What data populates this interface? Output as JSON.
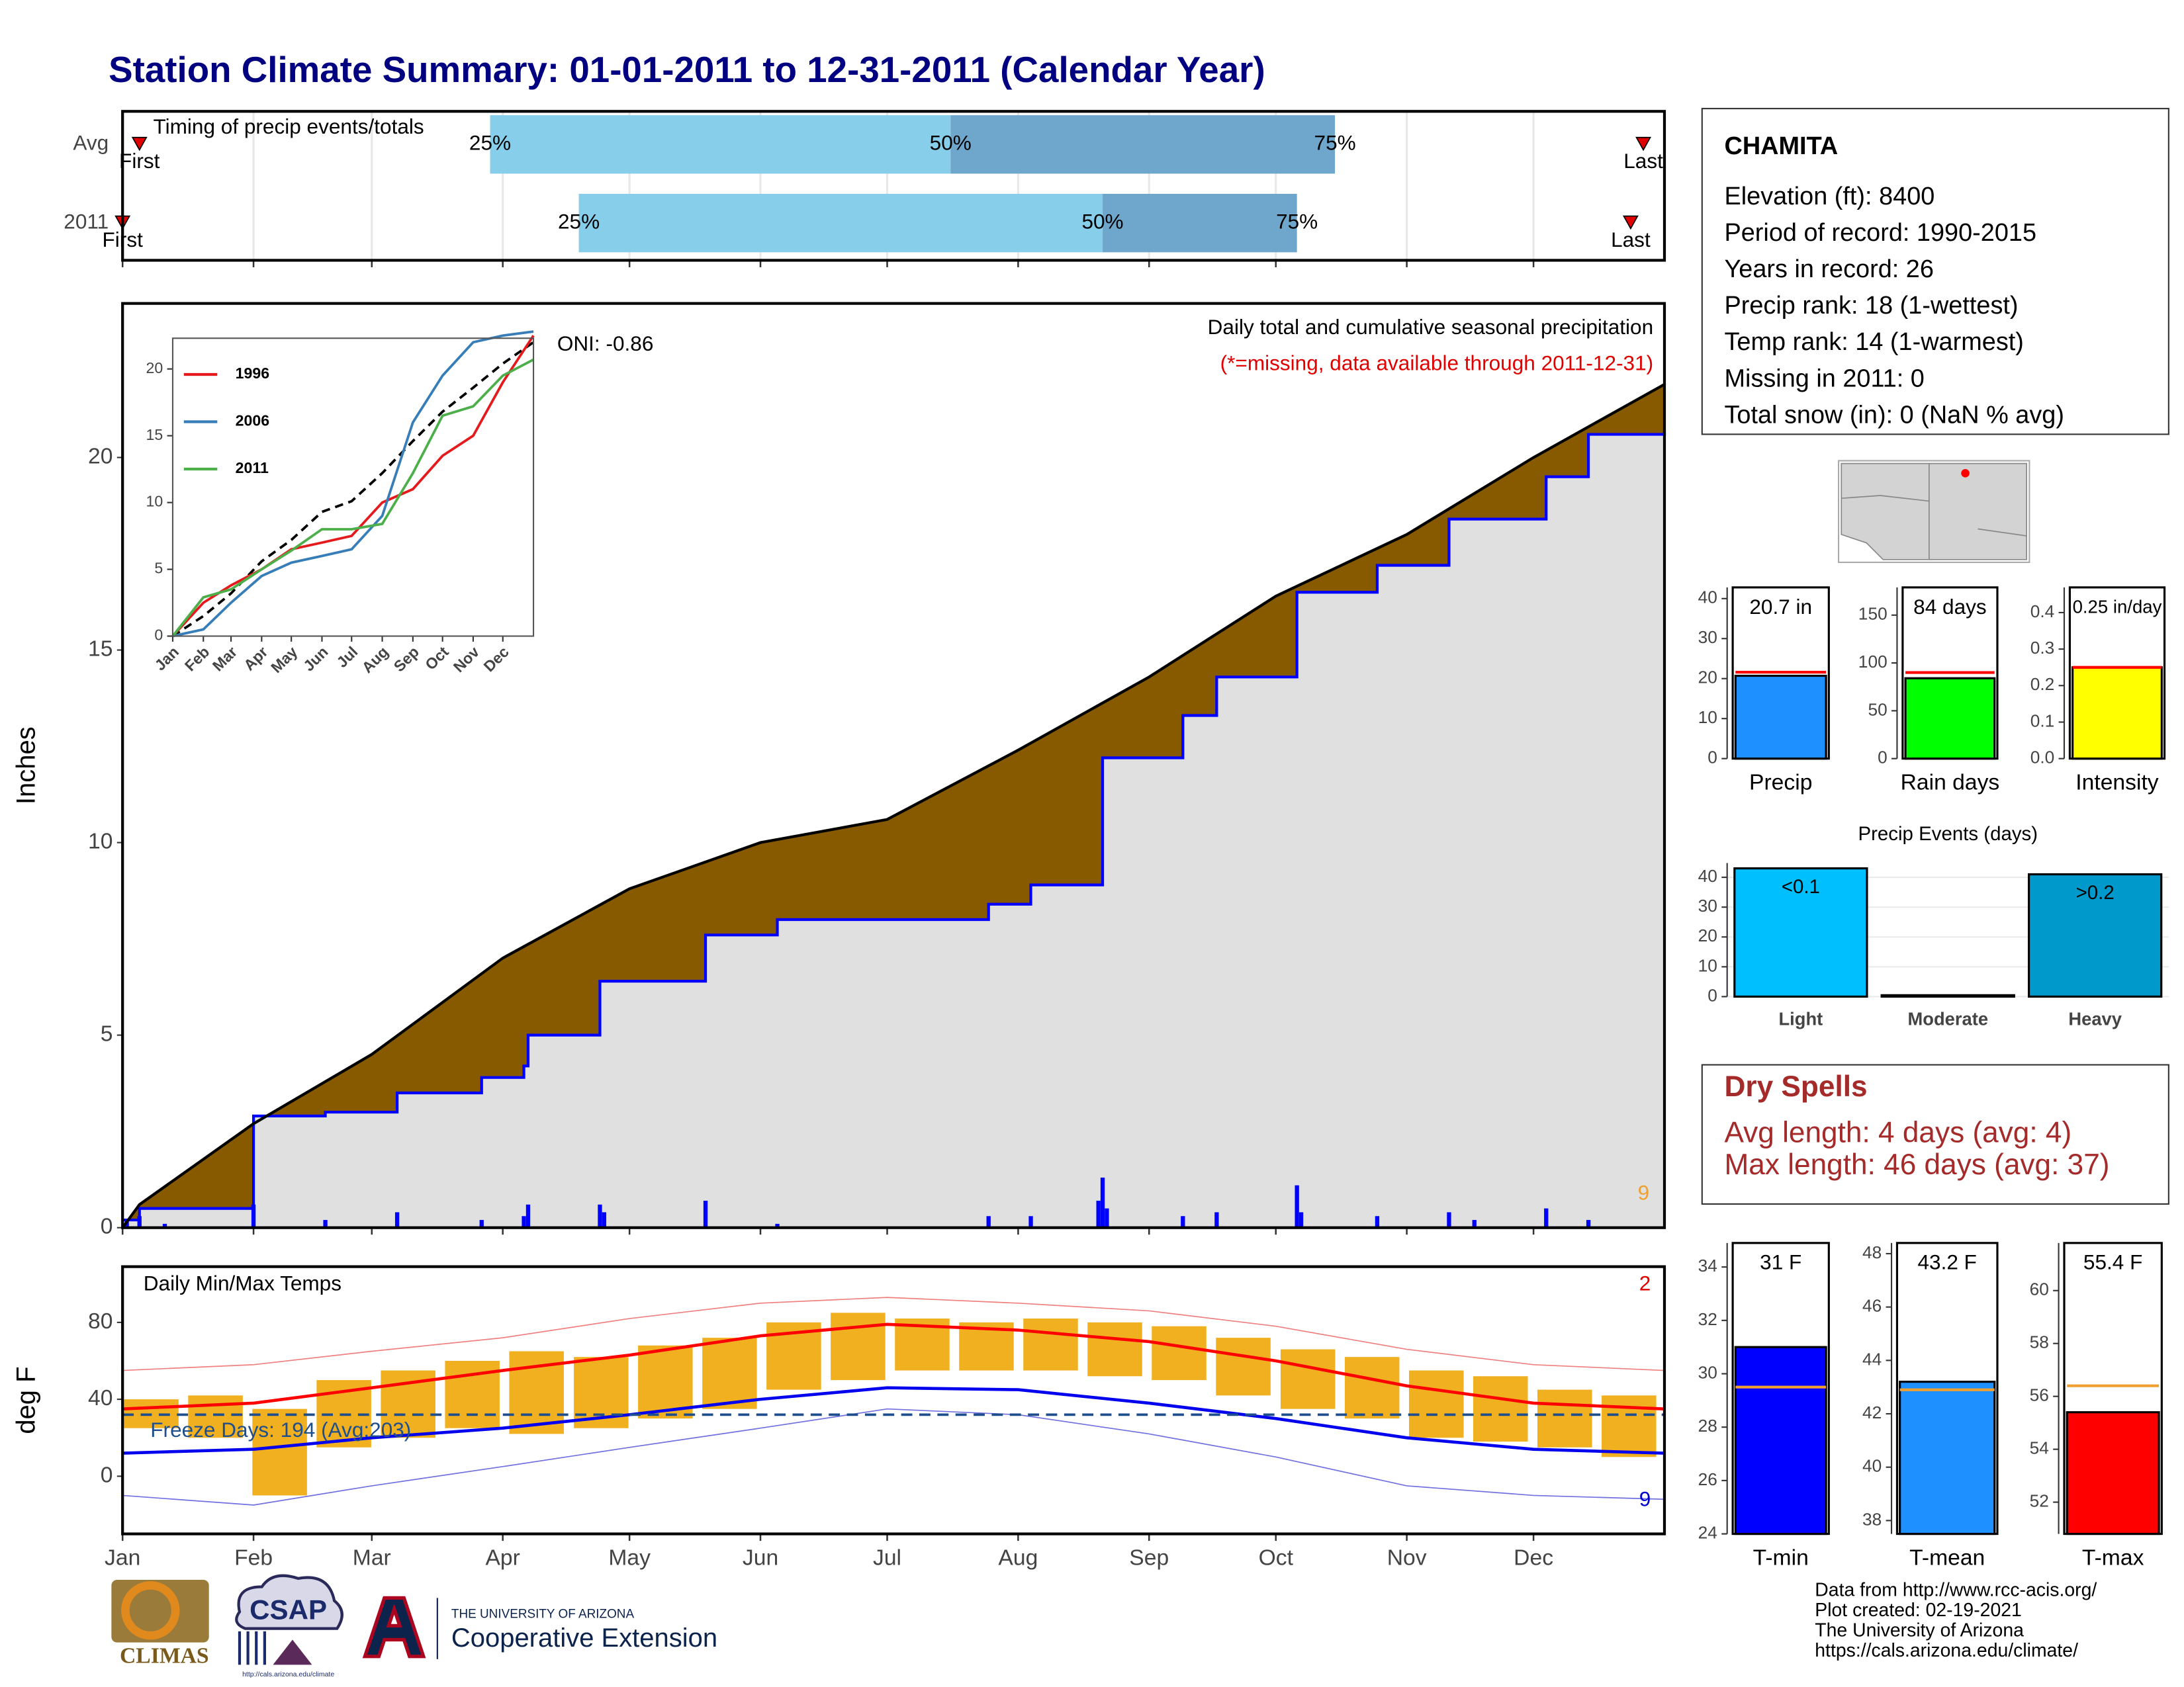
{
  "title": "Station Climate Summary: 01-01-2011 to 12-31-2011 (Calendar Year)",
  "chart_data": [
    {
      "type": "timing",
      "title": "Timing of precip events/totals",
      "categories": [
        "Avg",
        "2011"
      ],
      "xlim": [
        0,
        365
      ],
      "xticks": [
        0,
        31,
        59,
        90,
        120,
        151,
        181,
        212,
        243,
        273,
        304,
        334
      ],
      "grid": true,
      "marker_color": "#e00000",
      "series": [
        {
          "name": "First",
          "values": [
            4,
            0
          ]
        },
        {
          "name": "25%",
          "color": "#87ceeb",
          "values": [
            87,
            108
          ]
        },
        {
          "name": "50%",
          "color": "#6fa6cc",
          "values": [
            196,
            232
          ]
        },
        {
          "name": "75%",
          "values": [
            287,
            278
          ]
        },
        {
          "name": "Last",
          "values": [
            360,
            357
          ]
        }
      ]
    },
    {
      "type": "cumulative",
      "title": "Daily total and cumulative seasonal precipitation",
      "subtitle": "(*=missing, data available through 2011-12-31)",
      "oni": "ONI: -0.86",
      "note_count": "9",
      "ylabel": "Inches",
      "xlim": [
        0,
        365
      ],
      "xticks": [
        0,
        31,
        59,
        90,
        120,
        151,
        181,
        212,
        243,
        273,
        304,
        334
      ],
      "ylim": [
        0,
        24
      ],
      "yticks": [
        0,
        5,
        10,
        15,
        20
      ],
      "average": {
        "color": "#000000",
        "fill": "#875a00",
        "x": [
          0,
          4,
          31,
          59,
          90,
          120,
          151,
          181,
          212,
          243,
          273,
          304,
          334,
          365
        ],
        "values": [
          0,
          0.6,
          2.7,
          4.5,
          7.0,
          8.8,
          10.0,
          10.6,
          12.4,
          14.3,
          16.4,
          18.0,
          20.0,
          21.9
        ]
      },
      "observed": {
        "color": "#0000ff",
        "fill": "#e0e0e0",
        "x": [
          0,
          4,
          31,
          48,
          65,
          85,
          95,
          96,
          113,
          138,
          155,
          205,
          215,
          232,
          251,
          259,
          278,
          297,
          314,
          337,
          347,
          365
        ],
        "values": [
          0.2,
          0.5,
          2.9,
          3.0,
          3.5,
          3.9,
          4.2,
          5.0,
          6.4,
          7.6,
          8.0,
          8.4,
          8.9,
          12.2,
          13.3,
          14.3,
          16.5,
          17.2,
          18.4,
          19.5,
          20.6,
          20.7
        ]
      },
      "daily": {
        "color": "#0000ff",
        "x": [
          1,
          4,
          10,
          31,
          48,
          65,
          85,
          95,
          96,
          113,
          114,
          138,
          155,
          205,
          215,
          231,
          232,
          233,
          251,
          259,
          278,
          279,
          297,
          314,
          320,
          337,
          347
        ],
        "values": [
          0.2,
          0.3,
          0.1,
          0.6,
          0.2,
          0.4,
          0.2,
          0.3,
          0.6,
          0.6,
          0.4,
          0.7,
          0.1,
          0.3,
          0.3,
          0.7,
          1.3,
          0.5,
          0.3,
          0.4,
          1.1,
          0.4,
          0.3,
          0.4,
          0.2,
          0.5,
          0.2
        ]
      }
    },
    {
      "type": "inset",
      "xlim": [
        0,
        365
      ],
      "xticks": [
        {
          "value": 0,
          "label": "Jan"
        },
        {
          "value": 31,
          "label": "Feb"
        },
        {
          "value": 59,
          "label": "Mar"
        },
        {
          "value": 90,
          "label": "Apr"
        },
        {
          "value": 120,
          "label": "May"
        },
        {
          "value": 151,
          "label": "Jun"
        },
        {
          "value": 181,
          "label": "Jul"
        },
        {
          "value": 212,
          "label": "Aug"
        },
        {
          "value": 243,
          "label": "Sep"
        },
        {
          "value": 273,
          "label": "Oct"
        },
        {
          "value": 304,
          "label": "Nov"
        },
        {
          "value": 334,
          "label": "Dec"
        }
      ],
      "ylim": [
        0,
        22.3
      ],
      "yticks": [
        0,
        5,
        10,
        15,
        20
      ],
      "x": [
        0,
        31,
        59,
        90,
        120,
        151,
        181,
        212,
        243,
        273,
        304,
        334,
        365
      ],
      "average": {
        "color": "#000000",
        "values": [
          0,
          1.5,
          3.2,
          5.6,
          7.2,
          9.3,
          10.1,
          12.2,
          14.6,
          16.8,
          18.6,
          20.4,
          22.0
        ]
      },
      "series": [
        {
          "name": "1996",
          "color": "#e41a1c",
          "values": [
            0,
            2.5,
            3.8,
            5.0,
            6.5,
            7.0,
            7.5,
            10.0,
            11.0,
            13.5,
            15.0,
            19.0,
            22.5
          ]
        },
        {
          "name": "2006",
          "color": "#377eb8",
          "values": [
            0,
            0.5,
            2.5,
            4.5,
            5.5,
            6.0,
            6.5,
            9.0,
            16.0,
            19.5,
            22.0,
            22.5,
            22.8
          ]
        },
        {
          "name": "2011",
          "color": "#4daf4a",
          "values": [
            0,
            2.9,
            3.5,
            5.0,
            6.4,
            8.0,
            8.0,
            8.4,
            12.2,
            16.5,
            17.2,
            19.5,
            20.7
          ]
        }
      ]
    },
    {
      "type": "temps",
      "title": "Daily Min/Max Temps",
      "ylabel": "deg F",
      "note_max": "2",
      "note_min": "9",
      "xlim": [
        0,
        365
      ],
      "xticks": [
        {
          "value": 0,
          "label": "Jan"
        },
        {
          "value": 31,
          "label": "Feb"
        },
        {
          "value": 59,
          "label": "Mar"
        },
        {
          "value": 90,
          "label": "Apr"
        },
        {
          "value": 120,
          "label": "May"
        },
        {
          "value": 151,
          "label": "Jun"
        },
        {
          "value": 181,
          "label": "Jul"
        },
        {
          "value": 212,
          "label": "Aug"
        },
        {
          "value": 243,
          "label": "Sep"
        },
        {
          "value": 273,
          "label": "Oct"
        },
        {
          "value": 304,
          "label": "Nov"
        },
        {
          "value": 334,
          "label": "Dec"
        }
      ],
      "ylim": [
        -30,
        109
      ],
      "yticks": [
        0,
        40,
        80
      ],
      "freeze": {
        "value": 32,
        "label": "Freeze Days: 194 (Avg:203)",
        "color": "#1f4e8c"
      },
      "x": [
        0,
        31,
        59,
        90,
        120,
        151,
        181,
        212,
        243,
        273,
        304,
        334,
        365
      ],
      "record_max": {
        "color": "#f08080",
        "values": [
          55,
          58,
          65,
          72,
          82,
          90,
          93,
          90,
          86,
          78,
          66,
          58,
          55
        ]
      },
      "record_min": {
        "color": "#7070e0",
        "values": [
          -10,
          -15,
          -5,
          5,
          15,
          25,
          35,
          32,
          22,
          10,
          -5,
          -10,
          -12
        ]
      },
      "avg_max": {
        "color": "#ff0000",
        "values": [
          35,
          38,
          46,
          55,
          63,
          73,
          79,
          76,
          70,
          60,
          47,
          38,
          35
        ]
      },
      "avg_min": {
        "color": "#0000ee",
        "values": [
          12,
          14,
          20,
          25,
          32,
          40,
          46,
          45,
          38,
          30,
          20,
          14,
          12
        ]
      },
      "daily": {
        "color": "#f0b020",
        "x": [
          0,
          15.2,
          30.4,
          45.6,
          60.8,
          76,
          91.2,
          106.5,
          121.7,
          136.9,
          152.1,
          167.3,
          182.5,
          197.7,
          212.9,
          228.1,
          243.3,
          258.5,
          273.8,
          289,
          304.2,
          319.4,
          334.6,
          349.8
        ],
        "min": [
          25,
          20,
          -10,
          15,
          20,
          25,
          22,
          25,
          30,
          35,
          45,
          50,
          55,
          55,
          55,
          52,
          50,
          42,
          35,
          30,
          20,
          18,
          15,
          10
        ],
        "max": [
          40,
          42,
          35,
          50,
          55,
          60,
          65,
          62,
          68,
          72,
          80,
          85,
          82,
          80,
          82,
          80,
          78,
          72,
          66,
          62,
          55,
          52,
          45,
          42
        ]
      }
    },
    {
      "type": "summary_bar",
      "category": "Precip",
      "value": 20.7,
      "value_label": "20.7 in",
      "avg": 21.6,
      "color": "#1e90ff",
      "avg_color": "#ff0000",
      "ylim": [
        0,
        42.8
      ],
      "yticks": [
        0,
        10,
        20,
        30,
        40
      ]
    },
    {
      "type": "summary_bar",
      "category": "Rain days",
      "value": 84,
      "value_label": "84 days",
      "avg": 90,
      "color": "#00ff00",
      "avg_color": "#ff0000",
      "ylim": [
        0,
        179
      ],
      "yticks": [
        0,
        50,
        100,
        150
      ]
    },
    {
      "type": "summary_bar",
      "category": "Intensity",
      "value": 0.25,
      "value_label": "0.25 in/day",
      "avg": 0.25,
      "color": "#ffff00",
      "avg_color": "#ff0000",
      "ylim": [
        0,
        0.469
      ],
      "yticks": [
        {
          "value": 0,
          "label": "0.0"
        },
        0.1,
        0.2,
        0.3,
        0.4
      ]
    },
    {
      "type": "events",
      "title": "Precip Events (days)",
      "categories": [
        "Light",
        "Moderate",
        "Heavy"
      ],
      "values": [
        43,
        0,
        41
      ],
      "thresholds": [
        "<0.1",
        null,
        ">0.2"
      ],
      "colors": [
        "#00bfff",
        "#00bfff",
        "#0099cc"
      ],
      "ylim": [
        0,
        44.8
      ],
      "yticks": [
        0,
        10,
        20,
        30,
        40
      ],
      "grid": true
    },
    {
      "type": "summary_bar",
      "category": "T-min",
      "value": 31,
      "value_label": "31 F",
      "avg": 29.5,
      "color": "#0000ff",
      "avg_color": "#f0a030",
      "ylim": [
        24,
        34.9
      ],
      "yticks": [
        24,
        26,
        28,
        30,
        32,
        34
      ]
    },
    {
      "type": "summary_bar",
      "category": "T-mean",
      "value": 43.2,
      "value_label": "43.2 F",
      "avg": 42.9,
      "color": "#1e90ff",
      "avg_color": "#f0a030",
      "ylim": [
        37.5,
        48.4
      ],
      "yticks": [
        38,
        40,
        42,
        44,
        46,
        48
      ]
    },
    {
      "type": "summary_bar",
      "category": "T-max",
      "value": 55.4,
      "value_label": "55.4 F",
      "avg": 56.4,
      "color": "#ff0000",
      "avg_color": "#f0a030",
      "ylim": [
        50.8,
        61.8
      ],
      "yticks": [
        52,
        54,
        56,
        58,
        60
      ]
    }
  ],
  "station": {
    "name": "CHAMITA",
    "lines": [
      "Elevation (ft): 8400",
      "Period of record: 1990-2015",
      "Years in record: 26",
      "Precip rank: 18 (1-wettest)",
      "Temp rank: 14 (1-warmest)",
      "Missing in 2011: 0",
      "Total snow (in): 0 (NaN % avg)"
    ]
  },
  "dry_spells": {
    "title": "Dry Spells",
    "lines": [
      "Avg length: 4 days (avg: 4)",
      "Max length: 46 days (avg: 37)"
    ]
  },
  "credits": [
    "Data from http://www.rcc-acis.org/",
    "Plot created: 02-19-2021",
    "The University of Arizona",
    "https://cals.arizona.edu/climate/"
  ],
  "logos": {
    "climas": "CLIMAS",
    "csap": "CSAP",
    "csap_url": "http://cals.arizona.edu/climate",
    "ua_name": "THE UNIVERSITY OF ARIZONA",
    "coop": "Cooperative Extension"
  }
}
